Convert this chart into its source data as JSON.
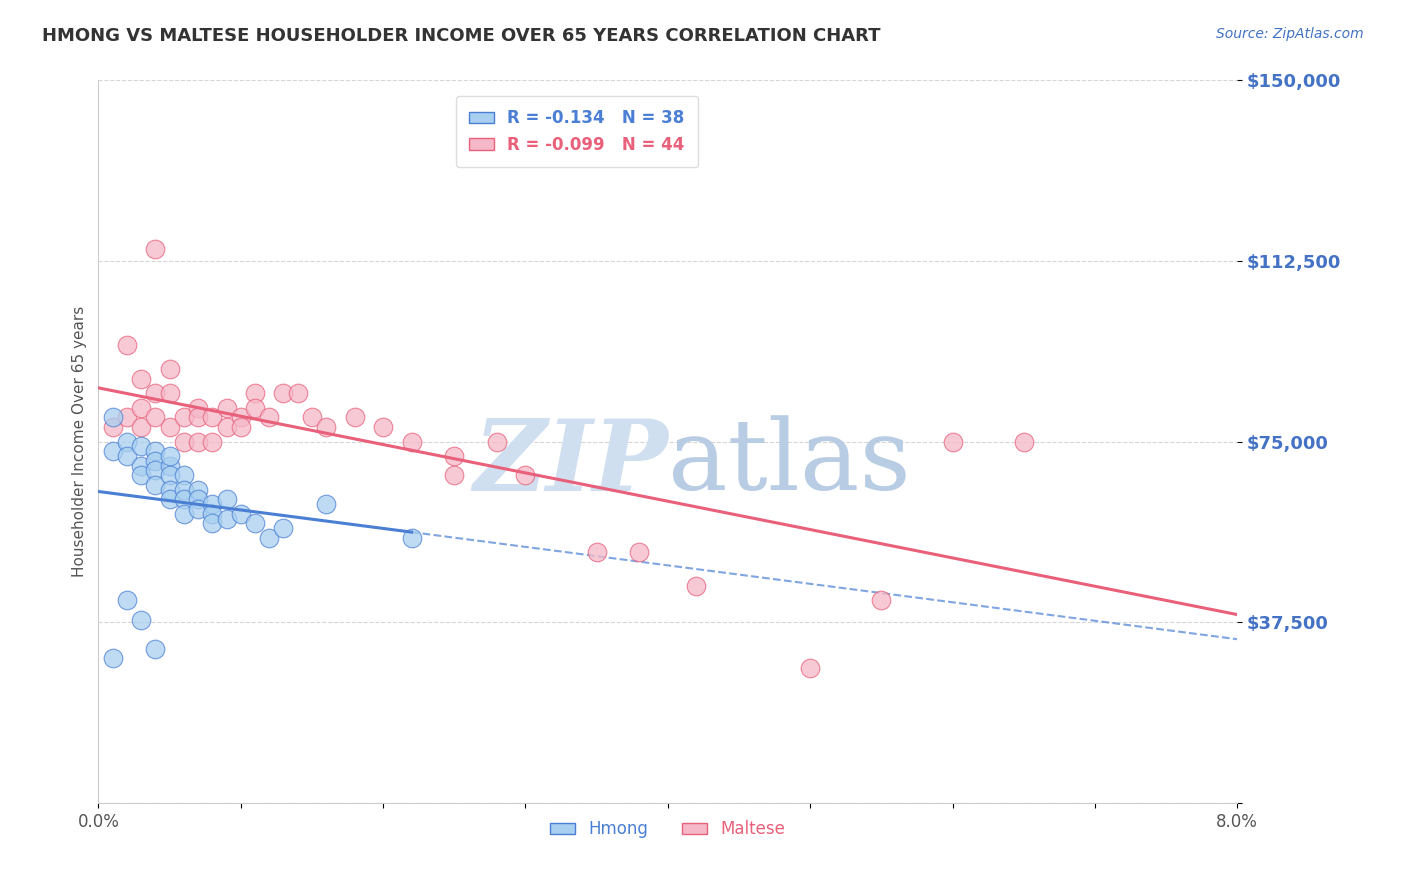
{
  "title": "HMONG VS MALTESE HOUSEHOLDER INCOME OVER 65 YEARS CORRELATION CHART",
  "source": "Source: ZipAtlas.com",
  "ylabel": "Householder Income Over 65 years",
  "xlim": [
    0.0,
    0.08
  ],
  "ylim": [
    0,
    150000
  ],
  "yticks": [
    0,
    37500,
    75000,
    112500,
    150000
  ],
  "ytick_labels": [
    "",
    "$37,500",
    "$75,000",
    "$112,500",
    "$150,000"
  ],
  "xticks": [
    0.0,
    0.01,
    0.02,
    0.03,
    0.04,
    0.05,
    0.06,
    0.07,
    0.08
  ],
  "xtick_labels": [
    "0.0%",
    "",
    "",
    "",
    "",
    "",
    "",
    "",
    "8.0%"
  ],
  "hmong_R": -0.134,
  "hmong_N": 38,
  "maltese_R": -0.099,
  "maltese_N": 44,
  "hmong_color": "#a8cff0",
  "maltese_color": "#f5b8c8",
  "hmong_line_color": "#4a7fd4",
  "maltese_line_color": "#e8607a",
  "watermark_color": "#d0dff0",
  "background_color": "#ffffff",
  "grid_color": "#cccccc",
  "title_color": "#333333",
  "ytick_color": "#4472c4",
  "hmong_x": [
    0.001,
    0.001,
    0.002,
    0.002,
    0.003,
    0.003,
    0.003,
    0.004,
    0.004,
    0.004,
    0.004,
    0.005,
    0.005,
    0.005,
    0.005,
    0.005,
    0.006,
    0.006,
    0.006,
    0.006,
    0.007,
    0.007,
    0.007,
    0.008,
    0.008,
    0.008,
    0.009,
    0.009,
    0.01,
    0.011,
    0.012,
    0.013,
    0.016,
    0.022,
    0.001,
    0.002,
    0.003,
    0.004
  ],
  "hmong_y": [
    80000,
    73000,
    75000,
    72000,
    74000,
    70000,
    68000,
    73000,
    71000,
    69000,
    66000,
    70000,
    68000,
    65000,
    63000,
    72000,
    68000,
    65000,
    63000,
    60000,
    65000,
    63000,
    61000,
    62000,
    60000,
    58000,
    63000,
    59000,
    60000,
    58000,
    55000,
    57000,
    62000,
    55000,
    30000,
    42000,
    38000,
    32000
  ],
  "maltese_x": [
    0.001,
    0.002,
    0.002,
    0.003,
    0.003,
    0.003,
    0.004,
    0.004,
    0.005,
    0.005,
    0.006,
    0.006,
    0.007,
    0.007,
    0.007,
    0.008,
    0.008,
    0.009,
    0.009,
    0.01,
    0.01,
    0.011,
    0.011,
    0.012,
    0.013,
    0.014,
    0.015,
    0.016,
    0.018,
    0.02,
    0.022,
    0.025,
    0.028,
    0.03,
    0.035,
    0.038,
    0.042,
    0.055,
    0.06,
    0.065,
    0.004,
    0.005,
    0.025,
    0.05
  ],
  "maltese_y": [
    78000,
    95000,
    80000,
    88000,
    82000,
    78000,
    85000,
    80000,
    85000,
    78000,
    80000,
    75000,
    82000,
    80000,
    75000,
    80000,
    75000,
    82000,
    78000,
    80000,
    78000,
    85000,
    82000,
    80000,
    85000,
    85000,
    80000,
    78000,
    80000,
    78000,
    75000,
    72000,
    75000,
    68000,
    52000,
    52000,
    45000,
    42000,
    75000,
    75000,
    115000,
    90000,
    68000,
    28000
  ]
}
